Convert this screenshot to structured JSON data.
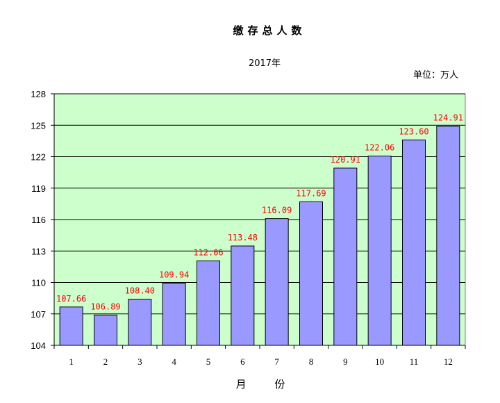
{
  "chart_data": {
    "type": "bar",
    "title": "缴存总人数",
    "subtitle": "2017年",
    "unit_label": "单位：万人",
    "xlabel": "月 份",
    "ylabel": "",
    "categories": [
      "1",
      "2",
      "3",
      "4",
      "5",
      "6",
      "7",
      "8",
      "9",
      "10",
      "11",
      "12"
    ],
    "values": [
      107.66,
      106.89,
      108.4,
      109.94,
      112.06,
      113.48,
      116.09,
      117.69,
      120.91,
      122.06,
      123.6,
      124.91
    ],
    "data_labels": [
      "107.66",
      "106.89",
      "108.40",
      "109.94",
      "112.06",
      "113.48",
      "116.09",
      "117.69",
      "120.91",
      "122.06",
      "123.60",
      "124.91"
    ],
    "ylim": [
      104,
      128
    ],
    "yticks": [
      "104",
      "107",
      "110",
      "113",
      "116",
      "119",
      "122",
      "125",
      "128"
    ],
    "grid": true,
    "legend": "none",
    "colors": {
      "plot_background": "#ccffcc",
      "bar_fill": "#9999ff",
      "bar_stroke": "#000000",
      "data_label": "#ff0000",
      "grid": "#000000"
    }
  }
}
